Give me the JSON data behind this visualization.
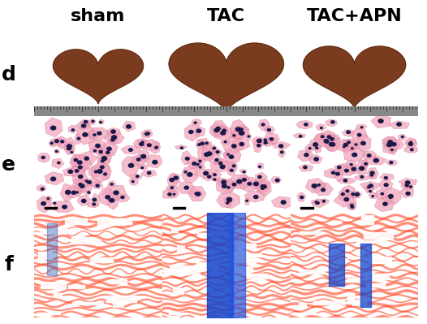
{
  "title_labels": [
    "sham",
    "TAC",
    "TAC+APN"
  ],
  "row_labels": [
    "d",
    "e",
    "f"
  ],
  "title_fontsize": 16,
  "row_label_fontsize": 18,
  "background_color": "#ffffff",
  "border_color": "#000000",
  "row_d": {
    "bg_color": "#c8c8c8",
    "heart_colors": [
      "#7a3b1e",
      "#6b3018",
      "#7a3b1e"
    ],
    "ruler_color": "#888888"
  },
  "row_e": {
    "bg_colors": [
      "#f4a0b5",
      "#f4a0c8",
      "#f4a0b8"
    ]
  },
  "row_f": {
    "bg_colors": [
      "#cc2200",
      "#cc2200",
      "#cc2200"
    ]
  },
  "grid_line_color": "#000000",
  "outer_border_color": "#000000"
}
